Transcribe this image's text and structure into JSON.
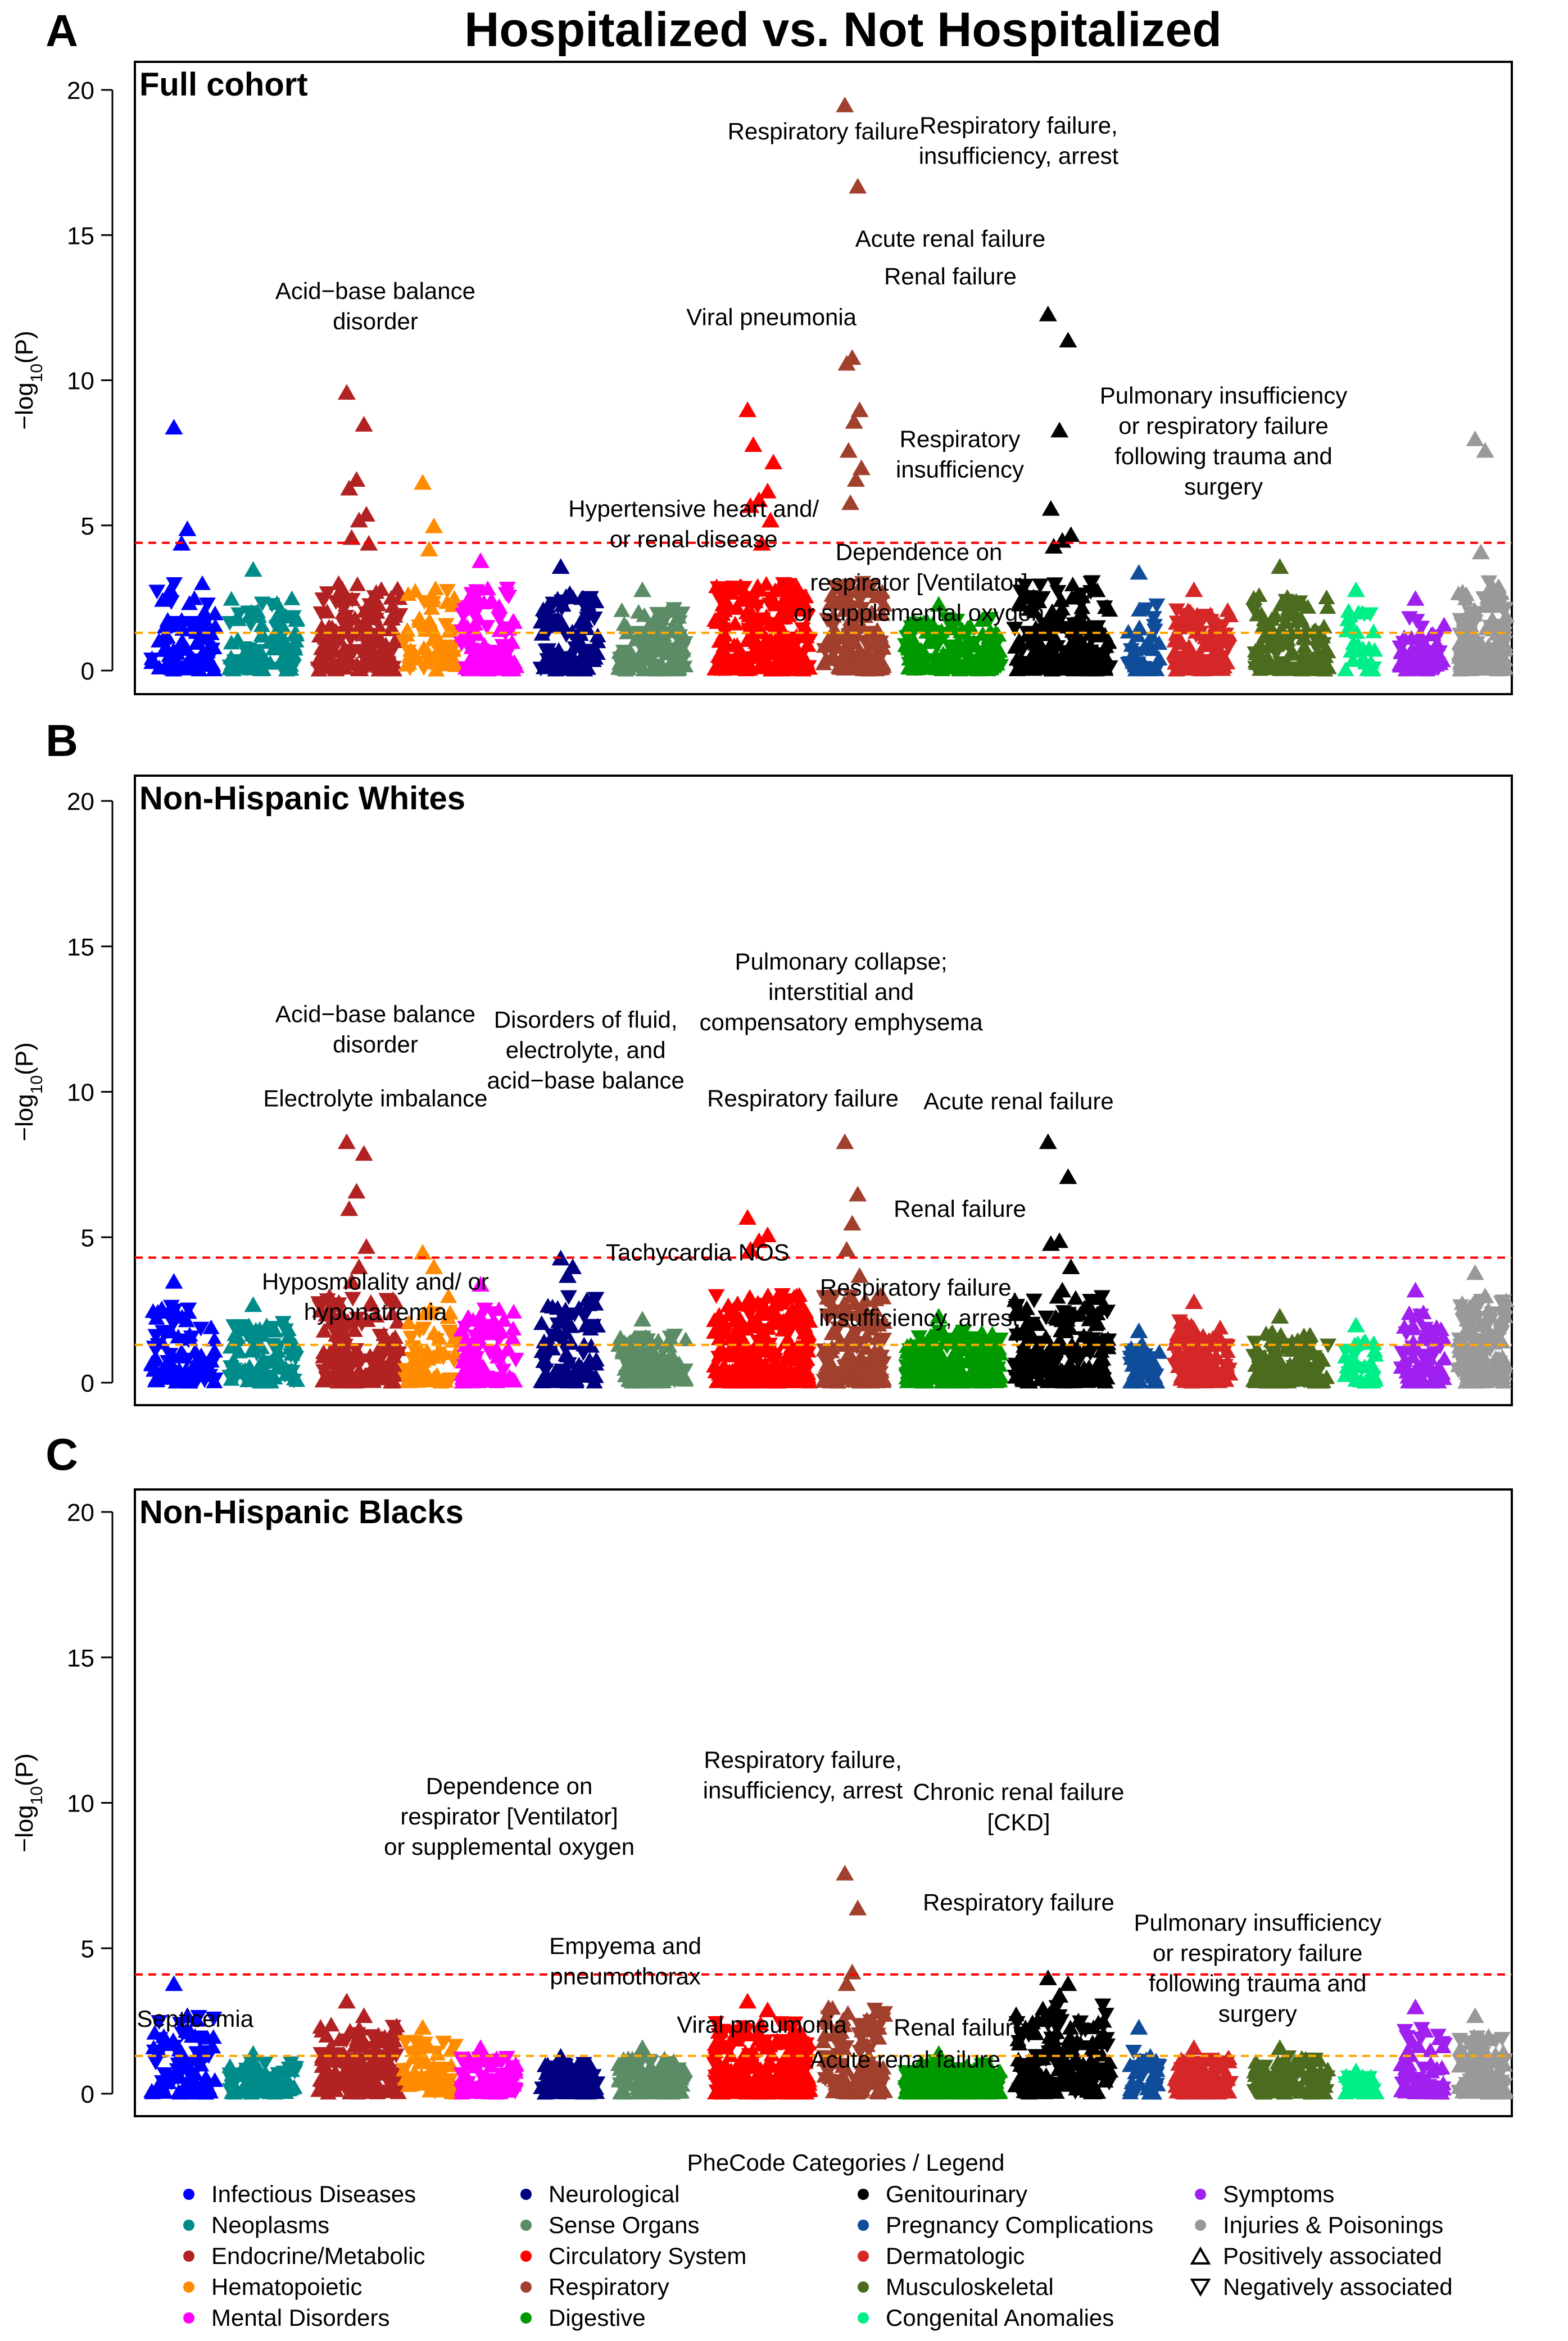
{
  "chart_data": {
    "type": "scatter",
    "subtype": "manhattan",
    "title": "Hospitalized vs. Not Hospitalized",
    "xlabel": "",
    "ylabel": "−log10(P)",
    "ylim": [
      0,
      20
    ],
    "yticks": [
      0,
      5,
      10,
      15,
      20
    ],
    "legend_title": "PheCode Categories / Legend",
    "categories": [
      {
        "name": "Infectious Diseases",
        "color": "#0000ff"
      },
      {
        "name": "Neoplasms",
        "color": "#008b8b"
      },
      {
        "name": "Endocrine/Metabolic",
        "color": "#b22222"
      },
      {
        "name": "Hematopoietic",
        "color": "#ff8c00"
      },
      {
        "name": "Mental Disorders",
        "color": "#ff00ff"
      },
      {
        "name": "Neurological",
        "color": "#000080"
      },
      {
        "name": "Sense Organs",
        "color": "#5b8c66"
      },
      {
        "name": "Circulatory System",
        "color": "#ff0000"
      },
      {
        "name": "Respiratory",
        "color": "#a0402d"
      },
      {
        "name": "Digestive",
        "color": "#009900"
      },
      {
        "name": "Genitourinary",
        "color": "#000000"
      },
      {
        "name": "Pregnancy Complications",
        "color": "#0f4c9a"
      },
      {
        "name": "Dermatologic",
        "color": "#d62728"
      },
      {
        "name": "Musculoskeletal",
        "color": "#4b6b1e"
      },
      {
        "name": "Congenital Anomalies",
        "color": "#00ee88"
      },
      {
        "name": "Symptoms",
        "color": "#a020f0"
      },
      {
        "name": "Injuries & Poisonings",
        "color": "#999999"
      }
    ],
    "shape_legend": [
      {
        "label": "Positively associated",
        "shape": "up"
      },
      {
        "label": "Negatively associated",
        "shape": "down"
      }
    ],
    "panels": [
      {
        "letter": "A",
        "name": "Full cohort",
        "sig_bonferroni": 4.4,
        "sig_nominal": 1.3,
        "peaks": [
          {
            "cat": 0,
            "values": [
              8.4,
              4.9,
              4.4
            ]
          },
          {
            "cat": 1,
            "values": [
              3.5
            ]
          },
          {
            "cat": 2,
            "values": [
              9.6,
              8.5,
              6.6,
              6.3,
              5.4,
              5.2,
              4.6,
              4.4
            ]
          },
          {
            "cat": 3,
            "values": [
              6.5,
              5.0,
              4.2
            ]
          },
          {
            "cat": 4,
            "values": [
              3.8
            ]
          },
          {
            "cat": 5,
            "values": [
              3.6
            ]
          },
          {
            "cat": 6,
            "values": [
              2.8
            ]
          },
          {
            "cat": 7,
            "values": [
              9.0,
              6.2,
              5.9,
              5.7,
              5.2,
              4.4,
              7.8,
              7.2
            ]
          },
          {
            "cat": 8,
            "values": [
              19.5,
              16.7,
              10.8,
              10.6,
              9.0,
              8.6,
              7.6,
              7.0,
              6.6,
              5.8
            ]
          },
          {
            "cat": 9,
            "values": [
              2.3
            ]
          },
          {
            "cat": 10,
            "values": [
              12.3,
              11.4,
              8.3,
              5.6,
              4.7,
              4.5,
              4.3
            ]
          },
          {
            "cat": 11,
            "values": [
              3.4
            ]
          },
          {
            "cat": 12,
            "values": [
              2.8
            ]
          },
          {
            "cat": 13,
            "values": [
              3.6
            ]
          },
          {
            "cat": 14,
            "values": [
              2.8
            ]
          },
          {
            "cat": 15,
            "values": [
              2.5
            ]
          },
          {
            "cat": 16,
            "values": [
              8.0,
              7.6,
              4.1
            ]
          }
        ],
        "annotations": [
          {
            "lines": [
              "Respiratory failure"
            ],
            "at": [
              0.5,
              18.3
            ]
          },
          {
            "lines": [
              "Respiratory failure,",
              "insufficiency, arrest"
            ],
            "at": [
              0.643,
              18.5
            ]
          },
          {
            "lines": [
              "Acute renal failure"
            ],
            "at": [
              0.593,
              14.6
            ]
          },
          {
            "lines": [
              "Renal failure"
            ],
            "at": [
              0.593,
              13.3
            ]
          },
          {
            "lines": [
              "Acid−base balance",
              "disorder"
            ],
            "at": [
              0.172,
              12.8
            ]
          },
          {
            "lines": [
              "Viral pneumonia"
            ],
            "at": [
              0.462,
              11.9
            ]
          },
          {
            "lines": [
              "Pulmonary insufficiency",
              "or respiratory failure",
              "following trauma and",
              "surgery"
            ],
            "at": [
              0.793,
              9.2
            ]
          },
          {
            "lines": [
              "Respiratory",
              "insufficiency"
            ],
            "at": [
              0.6,
              7.7
            ]
          },
          {
            "lines": [
              "Hypertensive heart and/",
              "or renal disease"
            ],
            "at": [
              0.405,
              5.3
            ]
          },
          {
            "lines": [
              "Dependence on",
              "respirator [Ventilator]",
              "or supplemental oxygen"
            ],
            "at": [
              0.57,
              3.8
            ]
          }
        ]
      },
      {
        "letter": "B",
        "name": "Non-Hispanic Whites",
        "sig_bonferroni": 4.3,
        "sig_nominal": 1.3,
        "peaks": [
          {
            "cat": 0,
            "values": [
              3.5
            ]
          },
          {
            "cat": 1,
            "values": [
              2.7
            ]
          },
          {
            "cat": 2,
            "values": [
              8.3,
              7.9,
              6.6,
              6.0,
              4.7,
              4.0,
              3.5
            ]
          },
          {
            "cat": 3,
            "values": [
              4.5,
              4.0
            ]
          },
          {
            "cat": 4,
            "values": [
              3.4
            ]
          },
          {
            "cat": 5,
            "values": [
              4.3,
              4.0,
              3.7
            ]
          },
          {
            "cat": 6,
            "values": [
              2.2
            ]
          },
          {
            "cat": 7,
            "values": [
              5.7,
              5.1,
              4.9,
              4.6
            ]
          },
          {
            "cat": 8,
            "values": [
              8.3,
              6.5,
              5.5,
              4.6,
              3.7
            ]
          },
          {
            "cat": 9,
            "values": [
              2.3
            ]
          },
          {
            "cat": 10,
            "values": [
              8.3,
              7.1,
              4.9,
              4.8,
              4.0,
              3.2
            ]
          },
          {
            "cat": 11,
            "values": [
              1.8
            ]
          },
          {
            "cat": 12,
            "values": [
              2.8
            ]
          },
          {
            "cat": 13,
            "values": [
              2.3
            ]
          },
          {
            "cat": 14,
            "values": [
              2.0
            ]
          },
          {
            "cat": 15,
            "values": [
              3.2
            ]
          },
          {
            "cat": 16,
            "values": [
              3.8,
              3.0
            ]
          }
        ],
        "annotations": [
          {
            "lines": [
              "Pulmonary collapse;",
              "interstitial and",
              "compensatory emphysema"
            ],
            "at": [
              0.513,
              14.2
            ]
          },
          {
            "lines": [
              "Acid−base balance",
              "disorder"
            ],
            "at": [
              0.172,
              12.4
            ]
          },
          {
            "lines": [
              "Disorders of fluid,",
              "electrolyte, and",
              "acid−base balance"
            ],
            "at": [
              0.326,
              12.2
            ]
          },
          {
            "lines": [
              "Electrolyte imbalance"
            ],
            "at": [
              0.172,
              9.5
            ]
          },
          {
            "lines": [
              "Respiratory failure"
            ],
            "at": [
              0.485,
              9.5
            ]
          },
          {
            "lines": [
              "Acute renal failure"
            ],
            "at": [
              0.643,
              9.4
            ]
          },
          {
            "lines": [
              "Renal failure"
            ],
            "at": [
              0.6,
              5.7
            ]
          },
          {
            "lines": [
              "Tachycardia NOS"
            ],
            "at": [
              0.408,
              4.2
            ]
          },
          {
            "lines": [
              "Hyposmolality and/ or",
              "hyponatremia"
            ],
            "at": [
              0.172,
              3.2
            ]
          },
          {
            "lines": [
              "Respiratory failure,",
              "insufficiency, arrest"
            ],
            "at": [
              0.57,
              3.0
            ]
          }
        ]
      },
      {
        "letter": "C",
        "name": "Non-Hispanic Blacks",
        "sig_bonferroni": 4.1,
        "sig_nominal": 1.3,
        "peaks": [
          {
            "cat": 0,
            "values": [
              3.8,
              2.7
            ]
          },
          {
            "cat": 1,
            "values": [
              1.4
            ]
          },
          {
            "cat": 2,
            "values": [
              3.2,
              2.7
            ]
          },
          {
            "cat": 3,
            "values": [
              2.3
            ]
          },
          {
            "cat": 4,
            "values": [
              1.6
            ]
          },
          {
            "cat": 5,
            "values": [
              1.3
            ]
          },
          {
            "cat": 6,
            "values": [
              1.6
            ]
          },
          {
            "cat": 7,
            "values": [
              3.2,
              2.9
            ]
          },
          {
            "cat": 8,
            "values": [
              7.6,
              6.4,
              4.2,
              3.8
            ]
          },
          {
            "cat": 9,
            "values": [
              1.4
            ]
          },
          {
            "cat": 10,
            "values": [
              4.0,
              3.8,
              3.4,
              2.8
            ]
          },
          {
            "cat": 11,
            "values": [
              2.3
            ]
          },
          {
            "cat": 12,
            "values": [
              1.6
            ]
          },
          {
            "cat": 13,
            "values": [
              1.6
            ]
          },
          {
            "cat": 14,
            "values": [
              0.8
            ]
          },
          {
            "cat": 15,
            "values": [
              3.0,
              2.2
            ]
          },
          {
            "cat": 16,
            "values": [
              2.7
            ]
          }
        ],
        "annotations": [
          {
            "lines": [
              "Respiratory failure,",
              "insufficiency, arrest"
            ],
            "at": [
              0.485,
              11.2
            ]
          },
          {
            "lines": [
              "Chronic renal failure",
              "[CKD]"
            ],
            "at": [
              0.643,
              10.1
            ]
          },
          {
            "lines": [
              "Dependence on",
              "respirator [Ventilator]",
              "or supplemental oxygen"
            ],
            "at": [
              0.27,
              10.3
            ]
          },
          {
            "lines": [
              "Respiratory failure"
            ],
            "at": [
              0.643,
              6.3
            ]
          },
          {
            "lines": [
              "Pulmonary insufficiency",
              "or respiratory failure",
              "following trauma and",
              "surgery"
            ],
            "at": [
              0.818,
              5.6
            ]
          },
          {
            "lines": [
              "Empyema and",
              "pneumothorax"
            ],
            "at": [
              0.355,
              4.8
            ]
          },
          {
            "lines": [
              "Septicemia"
            ],
            "at": [
              0.04,
              2.3
            ]
          },
          {
            "lines": [
              "Viral pneumonia"
            ],
            "at": [
              0.455,
              2.1
            ]
          },
          {
            "lines": [
              "Renal failure"
            ],
            "at": [
              0.6,
              2.0
            ]
          },
          {
            "lines": [
              "Acute renal failure"
            ],
            "at": [
              0.56,
              0.9
            ]
          }
        ]
      }
    ]
  }
}
